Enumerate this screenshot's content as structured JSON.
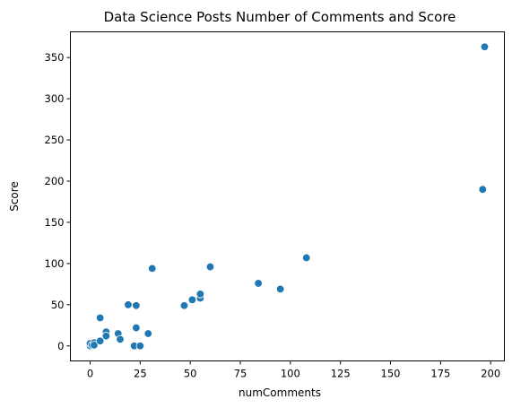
{
  "chart_data": {
    "type": "scatter",
    "title": "Data Science Posts Number of Comments and Score",
    "xlabel": "numComments",
    "ylabel": "Score",
    "xlim": [
      -9.85,
      206.85
    ],
    "ylim": [
      -18.2,
      381.2
    ],
    "xticks": [
      0,
      25,
      50,
      75,
      100,
      125,
      150,
      175,
      200
    ],
    "yticks": [
      0,
      50,
      100,
      150,
      200,
      250,
      300,
      350
    ],
    "grid": false,
    "point_color": "#1f77b4",
    "points": [
      {
        "x": 0,
        "y": 0
      },
      {
        "x": 0,
        "y": 3
      },
      {
        "x": 1,
        "y": 1
      },
      {
        "x": 2,
        "y": 4
      },
      {
        "x": 2,
        "y": 1
      },
      {
        "x": 5,
        "y": 6
      },
      {
        "x": 5,
        "y": 34
      },
      {
        "x": 8,
        "y": 17
      },
      {
        "x": 8,
        "y": 12
      },
      {
        "x": 14,
        "y": 15
      },
      {
        "x": 15,
        "y": 8
      },
      {
        "x": 19,
        "y": 50
      },
      {
        "x": 22,
        "y": 0
      },
      {
        "x": 23,
        "y": 22
      },
      {
        "x": 23,
        "y": 49
      },
      {
        "x": 25,
        "y": 0
      },
      {
        "x": 29,
        "y": 15
      },
      {
        "x": 31,
        "y": 94
      },
      {
        "x": 47,
        "y": 49
      },
      {
        "x": 51,
        "y": 56
      },
      {
        "x": 55,
        "y": 58
      },
      {
        "x": 55,
        "y": 63
      },
      {
        "x": 60,
        "y": 96
      },
      {
        "x": 84,
        "y": 76
      },
      {
        "x": 95,
        "y": 69
      },
      {
        "x": 108,
        "y": 107
      },
      {
        "x": 196,
        "y": 190
      },
      {
        "x": 197,
        "y": 363
      }
    ]
  }
}
